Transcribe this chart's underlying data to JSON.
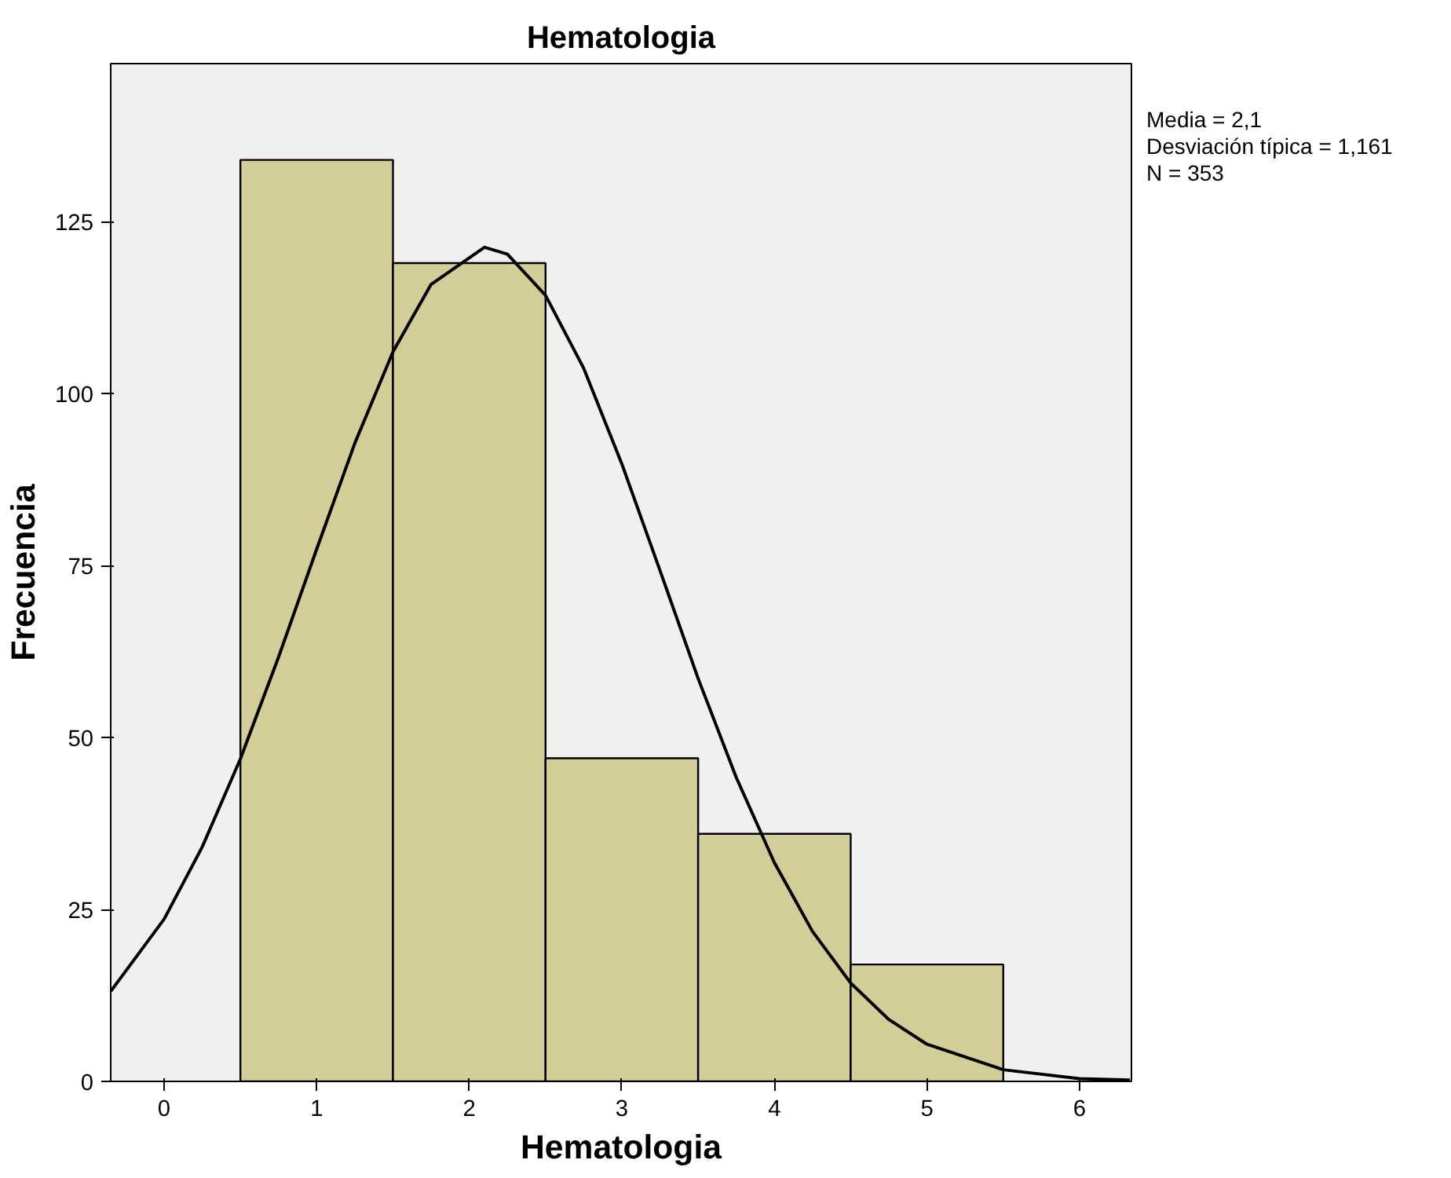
{
  "chart_data": {
    "type": "histogram",
    "title": "Hematologia",
    "xlabel": "Hematologia",
    "ylabel": "Frecuencia",
    "bins": [
      0.5,
      1.5,
      2.5,
      3.5,
      4.5,
      5.5
    ],
    "values": [
      134,
      119,
      47,
      36,
      17
    ],
    "color": "#d3ce98",
    "series": [
      {
        "type": "line",
        "color": "#000000",
        "x": [
          -0.35,
          0,
          0.25,
          0.5,
          0.75,
          1,
          1.25,
          1.5,
          1.75,
          2.1,
          2.25,
          2.5,
          2.75,
          3,
          3.25,
          3.5,
          3.75,
          4,
          4.25,
          4.5,
          4.75,
          5,
          5.5,
          6,
          6.33
        ],
        "values": [
          13.1,
          23.6,
          34.1,
          46.9,
          61.7,
          77.4,
          92.8,
          106.1,
          115.9,
          121.3,
          120.3,
          114.3,
          103.7,
          89.8,
          74.3,
          58.6,
          44.2,
          31.8,
          21.8,
          14.3,
          9.0,
          5.4,
          1.7,
          0.4,
          0.2
        ]
      }
    ],
    "xlim": [
      -0.35,
      6.34
    ],
    "ylim": [
      0,
      148
    ],
    "xticks": [
      0,
      1,
      2,
      3,
      4,
      5,
      6
    ],
    "yticks": [
      0,
      25,
      50,
      75,
      100,
      125
    ],
    "grid": false,
    "annotations": [
      "Media = 2,1",
      "Desviación típica = 1,161",
      "N = 353"
    ]
  }
}
